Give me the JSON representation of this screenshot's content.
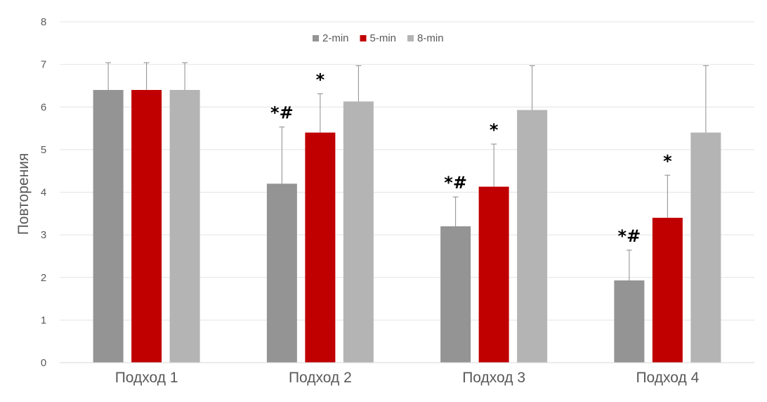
{
  "chart_data": {
    "type": "bar",
    "categories": [
      "Подход 1",
      "Подход 2",
      "Подход 3",
      "Подход 4"
    ],
    "series": [
      {
        "name": "2-min",
        "color": "#949494",
        "values": [
          6.4,
          4.2,
          3.2,
          1.93
        ],
        "errors": [
          0.64,
          1.33,
          0.69,
          0.71
        ]
      },
      {
        "name": "5-min",
        "color": "#c00000",
        "values": [
          6.4,
          5.4,
          4.13,
          3.4
        ],
        "errors": [
          0.64,
          0.91,
          1.0,
          1.0
        ]
      },
      {
        "name": "8-min",
        "color": "#b4b4b4",
        "values": [
          6.4,
          6.13,
          5.93,
          5.4
        ],
        "errors": [
          0.64,
          0.84,
          1.04,
          1.57
        ]
      }
    ],
    "annotations": [
      {
        "category": 1,
        "series": 0,
        "text": "*#"
      },
      {
        "category": 1,
        "series": 1,
        "text": "*"
      },
      {
        "category": 2,
        "series": 0,
        "text": "*#"
      },
      {
        "category": 2,
        "series": 1,
        "text": "*"
      },
      {
        "category": 3,
        "series": 0,
        "text": "*#"
      },
      {
        "category": 3,
        "series": 1,
        "text": "*"
      }
    ],
    "title": "",
    "xlabel": "",
    "ylabel": "Повторения",
    "ylim": [
      0,
      8
    ],
    "yticks": [
      "0",
      "1",
      "2",
      "3",
      "4",
      "5",
      "6",
      "7",
      "8"
    ],
    "grid": true,
    "legend_position": "top-center"
  }
}
